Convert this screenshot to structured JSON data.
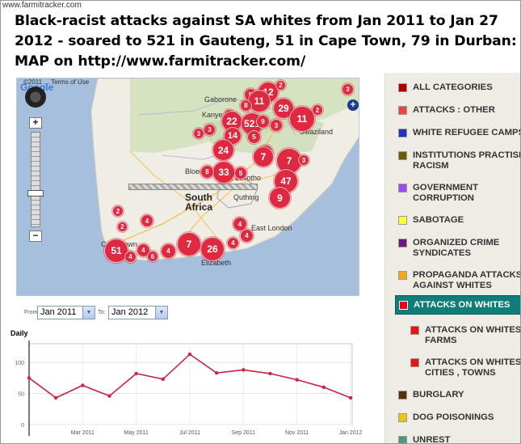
{
  "watermark": "www.farmitracker.com",
  "headline": "Black-racist attacks against SA whites from Jan 2011 to Jan 27 2012 - soared to 521 in Gauteng, 51 in Cape Town, 79 in Durban: MAP on http://www.farmitracker.com/",
  "map": {
    "logo": "Google",
    "terms": "©2011 ... Terms of Use",
    "labels": {
      "gaborone": "Gaborone",
      "kanye": "Kanye",
      "swaziland": "Swaziland",
      "south_africa_1": "South",
      "south_africa_2": "Africa",
      "bloemfontein": "Bloem",
      "lesotho": "Lesotho",
      "quthing": "Quthing",
      "cape_town": "Cape Town",
      "east_london": "East London",
      "elizabeth": "Elizabeth"
    },
    "markers": [
      {
        "id": "m-gaborone-5",
        "label": "5"
      },
      {
        "id": "m-top-12",
        "label": "12"
      },
      {
        "id": "m-top-2",
        "label": "2"
      },
      {
        "id": "m-far-3",
        "label": "3"
      },
      {
        "id": "m-11",
        "label": "11"
      },
      {
        "id": "m-8",
        "label": "8"
      },
      {
        "id": "m-29",
        "label": "29"
      },
      {
        "id": "m-kanye-2",
        "label": "2"
      },
      {
        "id": "m-22",
        "label": "22"
      },
      {
        "id": "m-521",
        "label": "521"
      },
      {
        "id": "m-9a",
        "label": "9"
      },
      {
        "id": "m-3a",
        "label": "3"
      },
      {
        "id": "m-11b",
        "label": "11"
      },
      {
        "id": "m-2b",
        "label": "2"
      },
      {
        "id": "m-14",
        "label": "14"
      },
      {
        "id": "m-3b",
        "label": "3"
      },
      {
        "id": "m-5a",
        "label": "5"
      },
      {
        "id": "m-24",
        "label": "24"
      },
      {
        "id": "m-8b",
        "label": "8"
      },
      {
        "id": "m-7a",
        "label": "7"
      },
      {
        "id": "m-7b",
        "label": "7"
      },
      {
        "id": "m-3c",
        "label": "3"
      },
      {
        "id": "m-33",
        "label": "33"
      },
      {
        "id": "m-8c",
        "label": "8"
      },
      {
        "id": "m-5b",
        "label": "5"
      },
      {
        "id": "m-47",
        "label": "47"
      },
      {
        "id": "m-9b",
        "label": "9"
      },
      {
        "id": "m-3d",
        "label": "3"
      },
      {
        "id": "m-2c",
        "label": "2"
      },
      {
        "id": "m-4a",
        "label": "4"
      },
      {
        "id": "m-2d",
        "label": "2"
      },
      {
        "id": "m-4b",
        "label": "4"
      },
      {
        "id": "m-4c",
        "label": "4"
      },
      {
        "id": "m-51",
        "label": "51"
      },
      {
        "id": "m-4d",
        "label": "4"
      },
      {
        "id": "m-4e",
        "label": "4"
      },
      {
        "id": "m-6",
        "label": "6"
      },
      {
        "id": "m-4f",
        "label": "4"
      },
      {
        "id": "m-7c",
        "label": "7"
      },
      {
        "id": "m-26",
        "label": "26"
      },
      {
        "id": "m-4g",
        "label": "4"
      }
    ]
  },
  "date_range": {
    "from_label": "From:",
    "from_value": "Jan 2011",
    "to_label": "To:",
    "to_value": "Jan 2012"
  },
  "chart_data": {
    "type": "line",
    "title": "Daily",
    "x": [
      "Jan 2011",
      "Feb 2011",
      "Mar 2011",
      "Apr 2011",
      "May 2011",
      "Jun 2011",
      "Jul 2011",
      "Aug 2011",
      "Sep 2011",
      "Oct 2011",
      "Nov 2011",
      "Dec 2011",
      "Jan 2012"
    ],
    "series": [
      {
        "values": [
          75,
          43,
          63,
          46,
          82,
          73,
          113,
          83,
          88,
          82,
          72,
          60,
          43
        ]
      }
    ],
    "ylim": [
      0,
      130
    ],
    "yticks": [
      "100",
      "50",
      "0"
    ],
    "xtick_labels": [
      "Mar 2011",
      "May 2011",
      "Jul 2011",
      "Sep 2011",
      "Nov 2011",
      "Jan 2012"
    ],
    "grid": true,
    "line_color": "#cc2244"
  },
  "categories": [
    {
      "label": "ALL CATEGORIES",
      "color": "#b00000"
    },
    {
      "label": "ATTACKS : OTHER",
      "color": "#e94545"
    },
    {
      "label": "WHITE REFUGEE CAMPS",
      "color": "#2233bb"
    },
    {
      "label": "INSTITUTIONS PRACTISING",
      "label2": "RACISM",
      "color": "#6b5c00"
    },
    {
      "label": "GOVERNMENT",
      "label2": "CORRUPTION",
      "color": "#9f4dea"
    },
    {
      "label": "SABOTAGE",
      "color": "#ffff33"
    },
    {
      "label": "ORGANIZED CRIME",
      "label2": "SYNDICATES",
      "color": "#6b1a82"
    },
    {
      "label": "PROPAGANDA ATTACKS",
      "label2": "AGAINST WHITES",
      "color": "#f5a623"
    },
    {
      "label": "ATTACKS ON WHITES",
      "color": "#e8001a"
    },
    {
      "label": "ATTACKS ON WHITES :",
      "label2": "FARMS",
      "color": "#ee1111"
    },
    {
      "label": "ATTACKS ON WHITES :",
      "label2": "CITIES , TOWNS",
      "color": "#ee1111"
    },
    {
      "label": "BURGLARY",
      "color": "#5a3000"
    },
    {
      "label": "DOG POISONINGS",
      "color": "#e6c619"
    },
    {
      "label": "UNREST",
      "color": "#4a9980"
    }
  ]
}
